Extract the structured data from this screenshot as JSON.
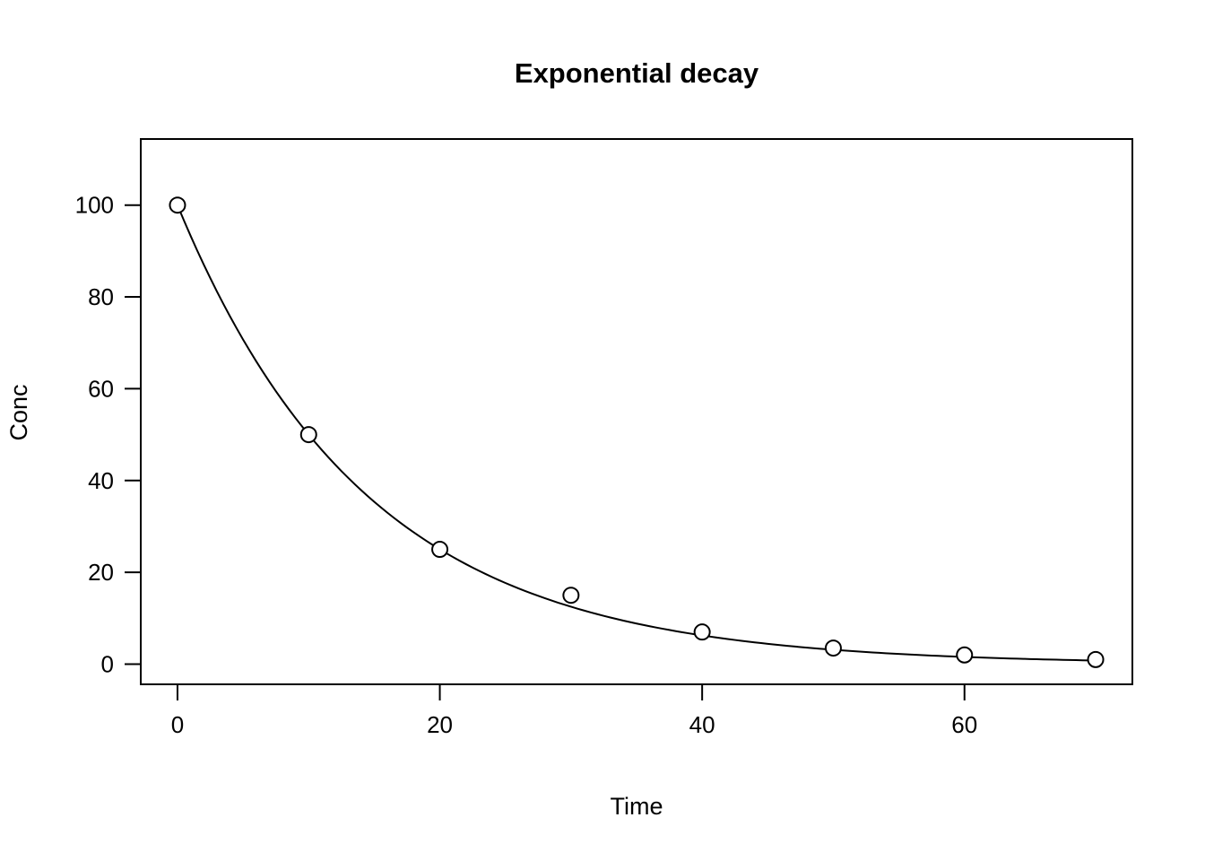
{
  "figure": {
    "background": "#ffffff",
    "foreground": "#000000"
  },
  "chart_data": {
    "type": "scatter",
    "title": "Exponential decay",
    "xlabel": "Time",
    "ylabel": "Conc",
    "x": [
      0,
      10,
      20,
      30,
      40,
      50,
      60,
      70
    ],
    "y": [
      100,
      50,
      25,
      15,
      7,
      3.5,
      2,
      1
    ],
    "marker": "open-circle",
    "curve": {
      "type": "exponential-decay",
      "formula": "y = 100 * exp(-0.0693 * t)",
      "amplitude": 100,
      "rate": 0.0693,
      "t_range": [
        0,
        70
      ]
    },
    "xticks": [
      0,
      20,
      40,
      60
    ],
    "yticks": [
      0,
      20,
      40,
      60,
      80,
      100
    ],
    "xlim": [
      0,
      70
    ],
    "ylim": [
      0,
      110
    ],
    "grid": false,
    "legend": null,
    "style": "r-base-plot"
  }
}
